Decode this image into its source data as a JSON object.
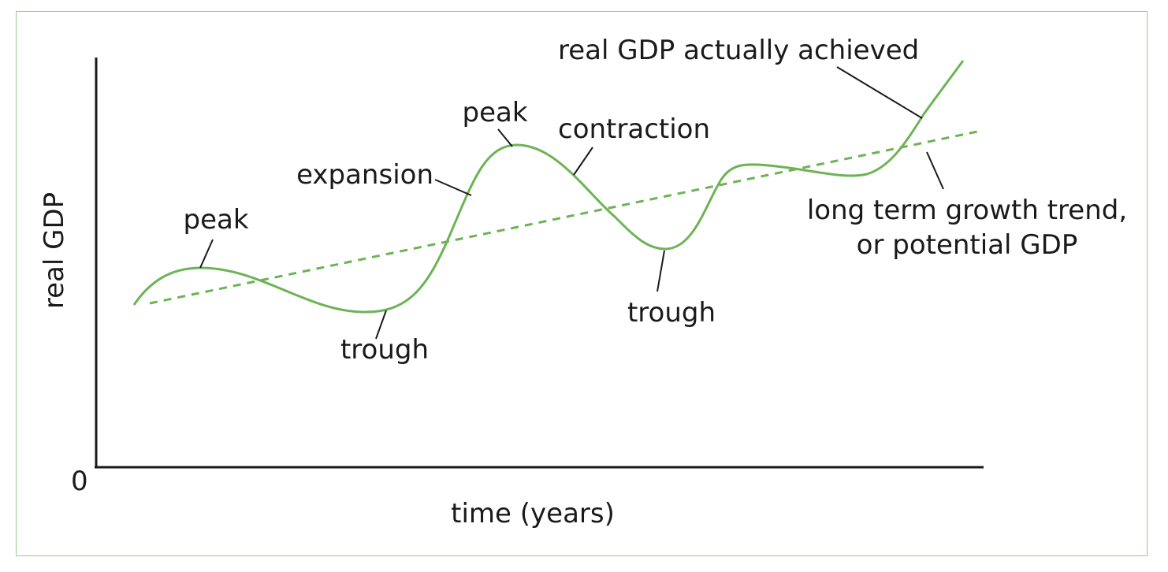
{
  "diagram": {
    "axes": {
      "x_label": "time (years)",
      "y_label": "real GDP",
      "origin_label": "0"
    },
    "series": [
      {
        "name": "real GDP actually achieved",
        "style": "solid",
        "color": "#6db356"
      },
      {
        "name": "long term growth trend, or potential GDP",
        "style": "dashed",
        "color": "#6db356"
      }
    ],
    "annotations": {
      "peak_1": "peak",
      "trough_1": "trough",
      "expansion": "expansion",
      "peak_2": "peak",
      "contraction": "contraction",
      "trough_2": "trough",
      "actual_label": "real GDP actually achieved",
      "trend_label_line1": "long term growth trend,",
      "trend_label_line2": "or potential GDP"
    },
    "colors": {
      "curve": "#6db356",
      "axis": "#1a1a1a",
      "frame": "#9bc98f"
    }
  }
}
